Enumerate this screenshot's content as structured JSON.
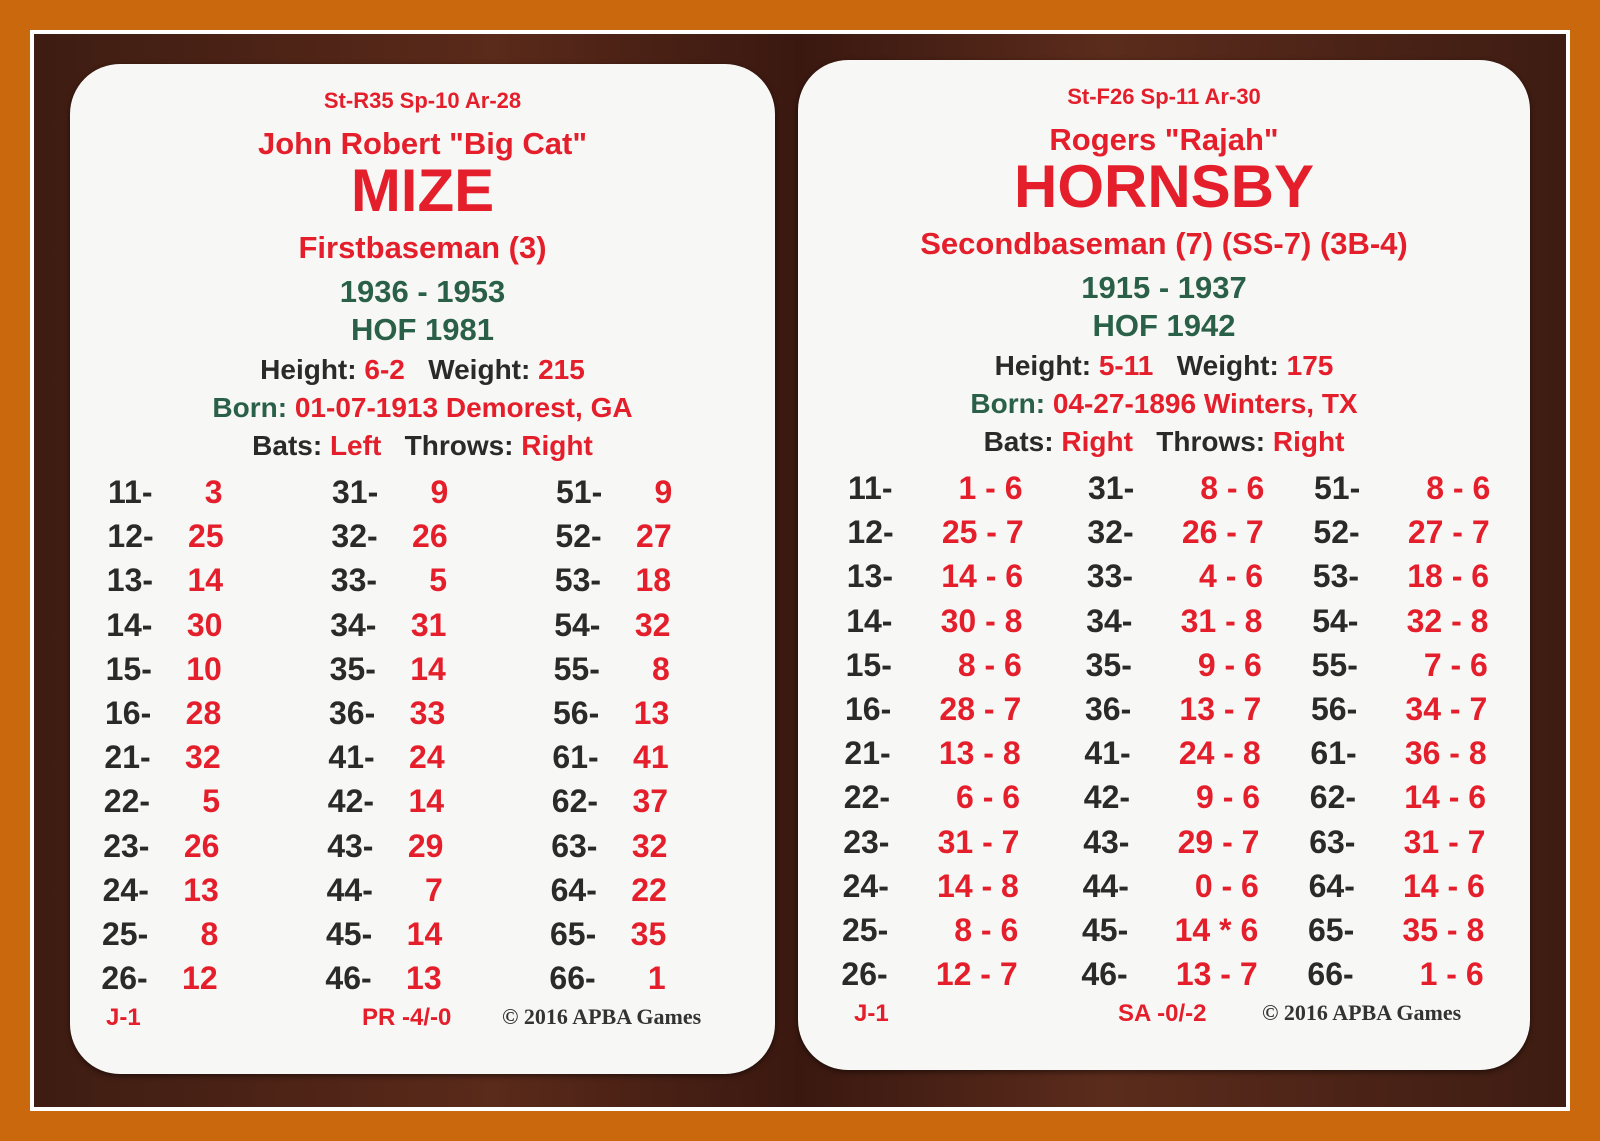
{
  "colors": {
    "frame": "#c9680c",
    "red": "#e41f2b",
    "green": "#2a6048",
    "black": "#2a2a2a"
  },
  "cards": [
    {
      "rating": "St-R35 Sp-10 Ar-28",
      "name": "John Robert \"Big Cat\"",
      "last": "MIZE",
      "position": "Firstbaseman (3)",
      "years": "1936 - 1953",
      "hof": "HOF 1981",
      "height_label": "Height:",
      "height": "6-2",
      "weight_label": "Weight:",
      "weight": "215",
      "born_label": "Born:",
      "born": "01-07-1913 Demorest, GA",
      "bats_label": "Bats:",
      "bats": "Left",
      "throws_label": "Throws:",
      "throws": "Right",
      "columns": [
        [
          [
            "11-",
            "3"
          ],
          [
            "12-",
            "25"
          ],
          [
            "13-",
            "14"
          ],
          [
            "14-",
            "30"
          ],
          [
            "15-",
            "10"
          ],
          [
            "16-",
            "28"
          ],
          [
            "21-",
            "32"
          ],
          [
            "22-",
            "5"
          ],
          [
            "23-",
            "26"
          ],
          [
            "24-",
            "13"
          ],
          [
            "25-",
            "8"
          ],
          [
            "26-",
            "12"
          ]
        ],
        [
          [
            "31-",
            "9"
          ],
          [
            "32-",
            "26"
          ],
          [
            "33-",
            "5"
          ],
          [
            "34-",
            "31"
          ],
          [
            "35-",
            "14"
          ],
          [
            "36-",
            "33"
          ],
          [
            "41-",
            "24"
          ],
          [
            "42-",
            "14"
          ],
          [
            "43-",
            "29"
          ],
          [
            "44-",
            "7"
          ],
          [
            "45-",
            "14"
          ],
          [
            "46-",
            "13"
          ]
        ],
        [
          [
            "51-",
            "9"
          ],
          [
            "52-",
            "27"
          ],
          [
            "53-",
            "18"
          ],
          [
            "54-",
            "32"
          ],
          [
            "55-",
            "8"
          ],
          [
            "56-",
            "13"
          ],
          [
            "61-",
            "41"
          ],
          [
            "62-",
            "37"
          ],
          [
            "63-",
            "32"
          ],
          [
            "64-",
            "22"
          ],
          [
            "65-",
            "35"
          ],
          [
            "66-",
            "1"
          ]
        ]
      ],
      "grade": "J-1",
      "rating2": "PR -4/-0",
      "copyright": "© 2016 APBA Games"
    },
    {
      "rating": "St-F26 Sp-11 Ar-30",
      "name": "Rogers \"Rajah\"",
      "last": "HORNSBY",
      "position": "Secondbaseman (7) (SS-7) (3B-4)",
      "years": "1915 - 1937",
      "hof": "HOF 1942",
      "height_label": "Height:",
      "height": "5-11",
      "weight_label": "Weight:",
      "weight": "175",
      "born_label": "Born:",
      "born": "04-27-1896 Winters, TX",
      "bats_label": "Bats:",
      "bats": "Right",
      "throws_label": "Throws:",
      "throws": "Right",
      "columns": [
        [
          [
            "11-",
            "1 - 6"
          ],
          [
            "12-",
            "25 - 7"
          ],
          [
            "13-",
            "14 - 6"
          ],
          [
            "14-",
            "30 - 8"
          ],
          [
            "15-",
            "8 - 6"
          ],
          [
            "16-",
            "28 - 7"
          ],
          [
            "21-",
            "13 - 8"
          ],
          [
            "22-",
            "6 - 6"
          ],
          [
            "23-",
            "31 - 7"
          ],
          [
            "24-",
            "14 - 8"
          ],
          [
            "25-",
            "8 - 6"
          ],
          [
            "26-",
            "12 - 7"
          ]
        ],
        [
          [
            "31-",
            "8 - 6"
          ],
          [
            "32-",
            "26 - 7"
          ],
          [
            "33-",
            "4 - 6"
          ],
          [
            "34-",
            "31 - 8"
          ],
          [
            "35-",
            "9 - 6"
          ],
          [
            "36-",
            "13 - 7"
          ],
          [
            "41-",
            "24 - 8"
          ],
          [
            "42-",
            "9 - 6"
          ],
          [
            "43-",
            "29 - 7"
          ],
          [
            "44-",
            "0 - 6"
          ],
          [
            "45-",
            "14 * 6"
          ],
          [
            "46-",
            "13 - 7"
          ]
        ],
        [
          [
            "51-",
            "8 - 6"
          ],
          [
            "52-",
            "27 - 7"
          ],
          [
            "53-",
            "18 - 6"
          ],
          [
            "54-",
            "32 - 8"
          ],
          [
            "55-",
            "7 - 6"
          ],
          [
            "56-",
            "34 - 7"
          ],
          [
            "61-",
            "36 - 8"
          ],
          [
            "62-",
            "14 - 6"
          ],
          [
            "63-",
            "31 - 7"
          ],
          [
            "64-",
            "14 - 6"
          ],
          [
            "65-",
            "35 - 8"
          ],
          [
            "66-",
            "1 - 6"
          ]
        ]
      ],
      "grade": "J-1",
      "rating2": "SA -0/-2",
      "copyright": "© 2016 APBA Games"
    }
  ]
}
